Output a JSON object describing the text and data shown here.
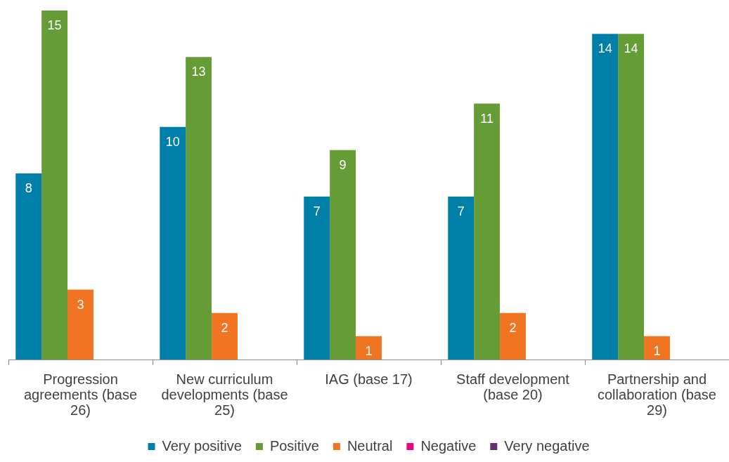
{
  "chart_data": {
    "type": "bar",
    "categories": [
      "Progression agreements (base 26)",
      "New curriculum developments (base 25)",
      "IAG (base 17)",
      "Staff development (base 20)",
      "Partnership and collaboration (base 29)"
    ],
    "series": [
      {
        "name": "Very positive",
        "color": "#007fa8",
        "values": [
          8,
          10,
          7,
          7,
          14
        ]
      },
      {
        "name": "Positive",
        "color": "#669c35",
        "values": [
          15,
          13,
          9,
          11,
          14
        ]
      },
      {
        "name": "Neutral",
        "color": "#f07422",
        "values": [
          3,
          2,
          1,
          2,
          1
        ]
      },
      {
        "name": "Negative",
        "color": "#e5097f",
        "values": [
          null,
          null,
          null,
          null,
          null
        ]
      },
      {
        "name": "Very negative",
        "color": "#6a2c70",
        "values": [
          null,
          null,
          null,
          null,
          null
        ]
      }
    ],
    "data_labels": true,
    "legend": "bottom"
  }
}
